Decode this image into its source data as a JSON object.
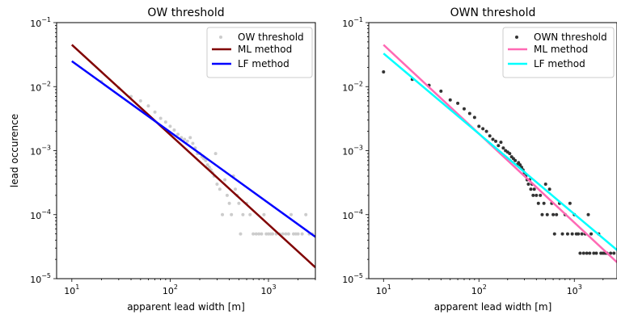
{
  "chart_data": [
    {
      "type": "scatter",
      "title": "OW threshold",
      "xlabel": "apparent lead width [m]",
      "ylabel": "lead occurence",
      "xscale": "log",
      "yscale": "log",
      "xlim": [
        7,
        3000
      ],
      "ylim": [
        1e-05,
        0.1
      ],
      "xticks": [
        {
          "base": "10",
          "exp": "1"
        },
        {
          "base": "10",
          "exp": "2"
        },
        {
          "base": "10",
          "exp": "3"
        }
      ],
      "yticks": [
        {
          "base": "10",
          "exp": "−5"
        },
        {
          "base": "10",
          "exp": "−4"
        },
        {
          "base": "10",
          "exp": "−3"
        },
        {
          "base": "10",
          "exp": "−2"
        },
        {
          "base": "10",
          "exp": "−1"
        }
      ],
      "legend_position": "top-right",
      "scatter": {
        "name": "OW threshold",
        "color": "#cccccc",
        "points": [
          [
            20,
            0.012
          ],
          [
            30,
            0.0095
          ],
          [
            40,
            0.007
          ],
          [
            50,
            0.006
          ],
          [
            60,
            0.005
          ],
          [
            70,
            0.004
          ],
          [
            80,
            0.0032
          ],
          [
            90,
            0.0028
          ],
          [
            100,
            0.0024
          ],
          [
            110,
            0.0021
          ],
          [
            120,
            0.0018
          ],
          [
            130,
            0.0016
          ],
          [
            140,
            0.0015
          ],
          [
            150,
            0.0014
          ],
          [
            160,
            0.0016
          ],
          [
            170,
            0.0013
          ],
          [
            180,
            0.0011
          ],
          [
            190,
            0.0009
          ],
          [
            200,
            0.0009
          ],
          [
            210,
            0.0008
          ],
          [
            220,
            0.00075
          ],
          [
            230,
            0.0007
          ],
          [
            240,
            0.0006
          ],
          [
            250,
            0.00055
          ],
          [
            260,
            0.0005
          ],
          [
            270,
            0.00045
          ],
          [
            280,
            0.0004
          ],
          [
            290,
            0.0009
          ],
          [
            300,
            0.0003
          ],
          [
            320,
            0.00025
          ],
          [
            340,
            0.0001
          ],
          [
            360,
            0.00035
          ],
          [
            380,
            0.0002
          ],
          [
            400,
            0.00015
          ],
          [
            420,
            0.0001
          ],
          [
            440,
            0.0004
          ],
          [
            460,
            0.00025
          ],
          [
            480,
            0.0002
          ],
          [
            500,
            0.00015
          ],
          [
            520,
            5e-05
          ],
          [
            550,
            0.0001
          ],
          [
            600,
            0.00015
          ],
          [
            650,
            0.0001
          ],
          [
            700,
            5e-05
          ],
          [
            750,
            5e-05
          ],
          [
            800,
            5e-05
          ],
          [
            850,
            5e-05
          ],
          [
            900,
            0.0001
          ],
          [
            950,
            5e-05
          ],
          [
            1000,
            5e-05
          ],
          [
            1050,
            5e-05
          ],
          [
            1100,
            5e-05
          ],
          [
            1200,
            5e-05
          ],
          [
            1300,
            5e-05
          ],
          [
            1400,
            5e-05
          ],
          [
            1500,
            5e-05
          ],
          [
            1600,
            5e-05
          ],
          [
            1700,
            0.0001
          ],
          [
            1800,
            5e-05
          ],
          [
            1900,
            5e-05
          ],
          [
            2000,
            5e-05
          ],
          [
            2200,
            5e-05
          ],
          [
            2400,
            0.0001
          ],
          [
            2600,
            5e-05
          ],
          [
            2800,
            5e-05
          ]
        ]
      },
      "lines": [
        {
          "name": "ML method",
          "color": "#800000",
          "x": [
            10,
            3000
          ],
          "y": [
            0.045,
            1.5e-05
          ]
        },
        {
          "name": "LF method",
          "color": "#0000ff",
          "x": [
            10,
            3000
          ],
          "y": [
            0.025,
            4.5e-05
          ]
        }
      ]
    },
    {
      "type": "scatter",
      "title": "OWN threshold",
      "xlabel": "apparent lead width [m]",
      "ylabel": "",
      "xscale": "log",
      "yscale": "log",
      "xlim": [
        7,
        2800
      ],
      "ylim": [
        1e-05,
        0.1
      ],
      "xticks": [
        {
          "base": "10",
          "exp": "1"
        },
        {
          "base": "10",
          "exp": "2"
        },
        {
          "base": "10",
          "exp": "3"
        }
      ],
      "yticks": [
        {
          "base": "10",
          "exp": "−5"
        },
        {
          "base": "10",
          "exp": "−4"
        },
        {
          "base": "10",
          "exp": "−3"
        },
        {
          "base": "10",
          "exp": "−2"
        },
        {
          "base": "10",
          "exp": "−1"
        }
      ],
      "legend_position": "top-right",
      "scatter": {
        "name": "OWN threshold",
        "color": "#333333",
        "points": [
          [
            10,
            0.017
          ],
          [
            20,
            0.013
          ],
          [
            30,
            0.0105
          ],
          [
            40,
            0.0085
          ],
          [
            50,
            0.0062
          ],
          [
            60,
            0.0055
          ],
          [
            70,
            0.0045
          ],
          [
            80,
            0.0038
          ],
          [
            90,
            0.0033
          ],
          [
            100,
            0.0024
          ],
          [
            110,
            0.0022
          ],
          [
            120,
            0.002
          ],
          [
            130,
            0.0017
          ],
          [
            140,
            0.0015
          ],
          [
            150,
            0.0014
          ],
          [
            160,
            0.0012
          ],
          [
            170,
            0.00135
          ],
          [
            180,
            0.0011
          ],
          [
            190,
            0.001
          ],
          [
            200,
            0.00095
          ],
          [
            210,
            0.0009
          ],
          [
            220,
            0.0008
          ],
          [
            230,
            0.00075
          ],
          [
            240,
            0.0007
          ],
          [
            250,
            0.0006
          ],
          [
            260,
            0.00065
          ],
          [
            270,
            0.0006
          ],
          [
            280,
            0.00055
          ],
          [
            290,
            0.0005
          ],
          [
            300,
            0.00045
          ],
          [
            310,
            0.0004
          ],
          [
            320,
            0.00035
          ],
          [
            330,
            0.0003
          ],
          [
            340,
            0.00035
          ],
          [
            350,
            0.00025
          ],
          [
            360,
            0.0003
          ],
          [
            370,
            0.0002
          ],
          [
            380,
            0.00025
          ],
          [
            400,
            0.0002
          ],
          [
            420,
            0.00015
          ],
          [
            440,
            0.0002
          ],
          [
            460,
            0.0001
          ],
          [
            480,
            0.00015
          ],
          [
            500,
            0.0003
          ],
          [
            520,
            0.0001
          ],
          [
            550,
            0.00025
          ],
          [
            580,
            0.00015
          ],
          [
            600,
            0.0001
          ],
          [
            620,
            5e-05
          ],
          [
            650,
            0.0001
          ],
          [
            700,
            0.00015
          ],
          [
            750,
            5e-05
          ],
          [
            800,
            0.0001
          ],
          [
            850,
            5e-05
          ],
          [
            900,
            0.00015
          ],
          [
            950,
            5e-05
          ],
          [
            1000,
            0.0001
          ],
          [
            1050,
            5e-05
          ],
          [
            1100,
            5e-05
          ],
          [
            1150,
            2.5e-05
          ],
          [
            1200,
            5e-05
          ],
          [
            1250,
            2.5e-05
          ],
          [
            1300,
            5e-05
          ],
          [
            1350,
            2.5e-05
          ],
          [
            1400,
            0.0001
          ],
          [
            1450,
            2.5e-05
          ],
          [
            1500,
            5e-05
          ],
          [
            1600,
            2.5e-05
          ],
          [
            1700,
            2.5e-05
          ],
          [
            1800,
            5e-05
          ],
          [
            1900,
            2.5e-05
          ],
          [
            2000,
            2.5e-05
          ],
          [
            2100,
            2.5e-05
          ],
          [
            2200,
            2.5e-05
          ],
          [
            2400,
            2.5e-05
          ],
          [
            2600,
            2.5e-05
          ]
        ]
      },
      "lines": [
        {
          "name": "ML method",
          "color": "#ff69b4",
          "x": [
            10,
            2800
          ],
          "y": [
            0.045,
            1.8e-05
          ]
        },
        {
          "name": "LF method",
          "color": "#00ffff",
          "x": [
            10,
            2800
          ],
          "y": [
            0.033,
            2.8e-05
          ]
        }
      ]
    }
  ]
}
